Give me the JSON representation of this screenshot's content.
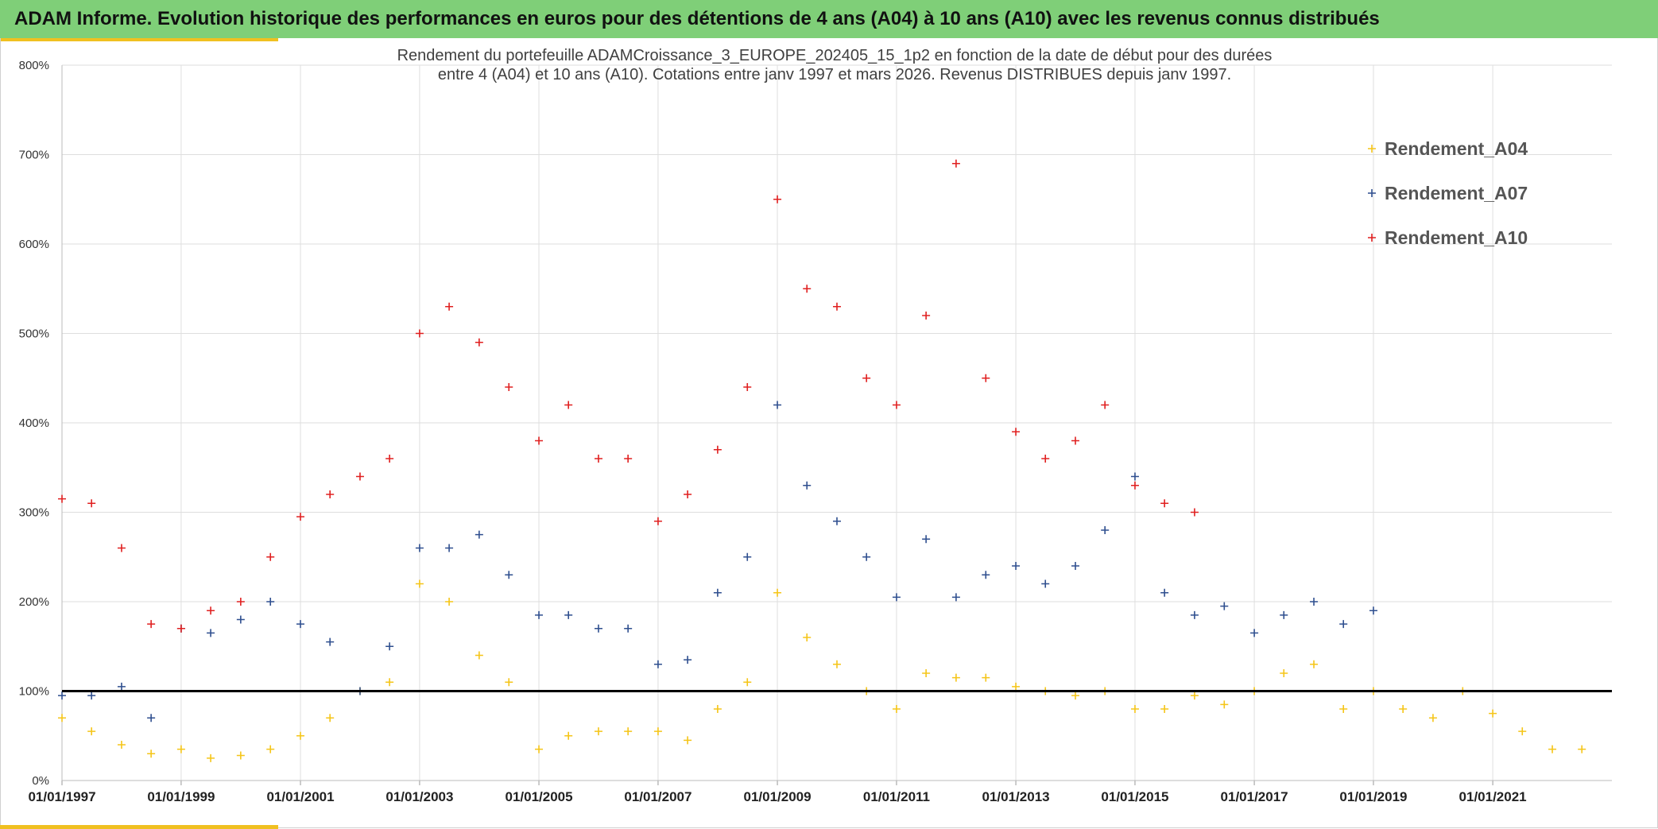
{
  "banner": {
    "title": "ADAM Informe. Evolution historique des performances en euros pour des détentions de 4 ans (A04) à 10 ans (A10) avec les revenus connus distribués"
  },
  "colors": {
    "banner_bg": "#7fcf78",
    "accent": "#f0c020",
    "a04": "#f5c518",
    "a07": "#2f4f8f",
    "a10": "#e02020",
    "reference_line": "#000000"
  },
  "chart_data": {
    "type": "scatter",
    "marker": "plus",
    "title_lines": [
      "Rendement du portefeuille ADAMCroissance_3_EUROPE_202405_15_1p2  en fonction de la date de début pour des durées",
      "entre 4 (A04) et 10 ans (A10). Cotations entre janv 1997 et mars 2026. Revenus DISTRIBUES depuis janv 1997."
    ],
    "x_axis": {
      "type": "date",
      "range": [
        "1997-01-01",
        "2023-01-01"
      ],
      "tick_labels": [
        "01/01/1997",
        "01/01/1999",
        "01/01/2001",
        "01/01/2003",
        "01/01/2005",
        "01/01/2007",
        "01/01/2009",
        "01/01/2011",
        "01/01/2013",
        "01/01/2015",
        "01/01/2017",
        "01/01/2019",
        "01/01/2021"
      ]
    },
    "y_axis": {
      "range": [
        0,
        800
      ],
      "tick_values": [
        0,
        100,
        200,
        300,
        400,
        500,
        600,
        700,
        800
      ],
      "tick_labels": [
        "0%",
        "100%",
        "200%",
        "300%",
        "400%",
        "500%",
        "600%",
        "700%",
        "800%"
      ]
    },
    "grid": true,
    "legend": "top-right",
    "reference_line_y": 100,
    "series": [
      {
        "name": "Rendement_A04",
        "color": "#f5c518",
        "points": [
          [
            "1997-01-01",
            70
          ],
          [
            "1997-07-01",
            55
          ],
          [
            "1998-01-01",
            40
          ],
          [
            "1998-07-01",
            30
          ],
          [
            "1999-01-01",
            35
          ],
          [
            "1999-07-01",
            25
          ],
          [
            "2000-01-01",
            28
          ],
          [
            "2000-07-01",
            35
          ],
          [
            "2001-01-01",
            50
          ],
          [
            "2001-07-01",
            70
          ],
          [
            "2002-01-01",
            100
          ],
          [
            "2002-07-01",
            110
          ],
          [
            "2003-01-01",
            220
          ],
          [
            "2003-07-01",
            200
          ],
          [
            "2004-01-01",
            140
          ],
          [
            "2004-07-01",
            110
          ],
          [
            "2005-01-01",
            35
          ],
          [
            "2005-07-01",
            50
          ],
          [
            "2006-01-01",
            55
          ],
          [
            "2006-07-01",
            55
          ],
          [
            "2007-01-01",
            55
          ],
          [
            "2007-07-01",
            45
          ],
          [
            "2008-01-01",
            80
          ],
          [
            "2008-07-01",
            110
          ],
          [
            "2009-01-01",
            210
          ],
          [
            "2009-07-01",
            160
          ],
          [
            "2010-01-01",
            130
          ],
          [
            "2010-07-01",
            100
          ],
          [
            "2011-01-01",
            80
          ],
          [
            "2011-07-01",
            120
          ],
          [
            "2012-01-01",
            115
          ],
          [
            "2012-07-01",
            115
          ],
          [
            "2013-01-01",
            105
          ],
          [
            "2013-07-01",
            100
          ],
          [
            "2014-01-01",
            95
          ],
          [
            "2014-07-01",
            100
          ],
          [
            "2015-01-01",
            80
          ],
          [
            "2015-07-01",
            80
          ],
          [
            "2016-01-01",
            95
          ],
          [
            "2016-07-01",
            85
          ],
          [
            "2017-01-01",
            100
          ],
          [
            "2017-07-01",
            120
          ],
          [
            "2018-01-01",
            130
          ],
          [
            "2018-07-01",
            80
          ],
          [
            "2019-01-01",
            100
          ],
          [
            "2019-07-01",
            80
          ],
          [
            "2020-01-01",
            70
          ],
          [
            "2020-07-01",
            100
          ],
          [
            "2021-01-01",
            75
          ],
          [
            "2021-07-01",
            55
          ],
          [
            "2022-01-01",
            35
          ],
          [
            "2022-07-01",
            35
          ]
        ]
      },
      {
        "name": "Rendement_A07",
        "color": "#2f4f8f",
        "points": [
          [
            "1997-01-01",
            95
          ],
          [
            "1997-07-01",
            95
          ],
          [
            "1998-01-01",
            105
          ],
          [
            "1998-07-01",
            70
          ],
          [
            "1999-01-01",
            170
          ],
          [
            "1999-07-01",
            165
          ],
          [
            "2000-01-01",
            180
          ],
          [
            "2000-07-01",
            200
          ],
          [
            "2001-01-01",
            175
          ],
          [
            "2001-07-01",
            155
          ],
          [
            "2002-01-01",
            100
          ],
          [
            "2002-07-01",
            150
          ],
          [
            "2003-01-01",
            260
          ],
          [
            "2003-07-01",
            260
          ],
          [
            "2004-01-01",
            275
          ],
          [
            "2004-07-01",
            230
          ],
          [
            "2005-01-01",
            185
          ],
          [
            "2005-07-01",
            185
          ],
          [
            "2006-01-01",
            170
          ],
          [
            "2006-07-01",
            170
          ],
          [
            "2007-01-01",
            130
          ],
          [
            "2007-07-01",
            135
          ],
          [
            "2008-01-01",
            210
          ],
          [
            "2008-07-01",
            250
          ],
          [
            "2009-01-01",
            420
          ],
          [
            "2009-07-01",
            330
          ],
          [
            "2010-01-01",
            290
          ],
          [
            "2010-07-01",
            250
          ],
          [
            "2011-01-01",
            205
          ],
          [
            "2011-07-01",
            270
          ],
          [
            "2012-01-01",
            205
          ],
          [
            "2012-07-01",
            230
          ],
          [
            "2013-01-01",
            240
          ],
          [
            "2013-07-01",
            220
          ],
          [
            "2014-01-01",
            240
          ],
          [
            "2014-07-01",
            280
          ],
          [
            "2015-01-01",
            340
          ],
          [
            "2015-07-01",
            210
          ],
          [
            "2016-01-01",
            185
          ],
          [
            "2016-07-01",
            195
          ],
          [
            "2017-01-01",
            165
          ],
          [
            "2017-07-01",
            185
          ],
          [
            "2018-01-01",
            200
          ],
          [
            "2018-07-01",
            175
          ],
          [
            "2019-01-01",
            190
          ]
        ]
      },
      {
        "name": "Rendement_A10",
        "color": "#e02020",
        "points": [
          [
            "1997-01-01",
            315
          ],
          [
            "1997-07-01",
            310
          ],
          [
            "1998-01-01",
            260
          ],
          [
            "1998-07-01",
            175
          ],
          [
            "1999-01-01",
            170
          ],
          [
            "1999-07-01",
            190
          ],
          [
            "2000-01-01",
            200
          ],
          [
            "2000-07-01",
            250
          ],
          [
            "2001-01-01",
            295
          ],
          [
            "2001-07-01",
            320
          ],
          [
            "2002-01-01",
            340
          ],
          [
            "2002-07-01",
            360
          ],
          [
            "2003-01-01",
            500
          ],
          [
            "2003-07-01",
            530
          ],
          [
            "2004-01-01",
            490
          ],
          [
            "2004-07-01",
            440
          ],
          [
            "2005-01-01",
            380
          ],
          [
            "2005-07-01",
            420
          ],
          [
            "2006-01-01",
            360
          ],
          [
            "2006-07-01",
            360
          ],
          [
            "2007-01-01",
            290
          ],
          [
            "2007-07-01",
            320
          ],
          [
            "2008-01-01",
            370
          ],
          [
            "2008-07-01",
            440
          ],
          [
            "2009-01-01",
            650
          ],
          [
            "2009-07-01",
            550
          ],
          [
            "2010-01-01",
            530
          ],
          [
            "2010-07-01",
            450
          ],
          [
            "2011-01-01",
            420
          ],
          [
            "2011-07-01",
            520
          ],
          [
            "2012-01-01",
            690
          ],
          [
            "2012-07-01",
            450
          ],
          [
            "2013-01-01",
            390
          ],
          [
            "2013-07-01",
            360
          ],
          [
            "2014-01-01",
            380
          ],
          [
            "2014-07-01",
            420
          ],
          [
            "2015-01-01",
            330
          ],
          [
            "2015-07-01",
            310
          ],
          [
            "2016-01-01",
            300
          ]
        ]
      }
    ]
  }
}
